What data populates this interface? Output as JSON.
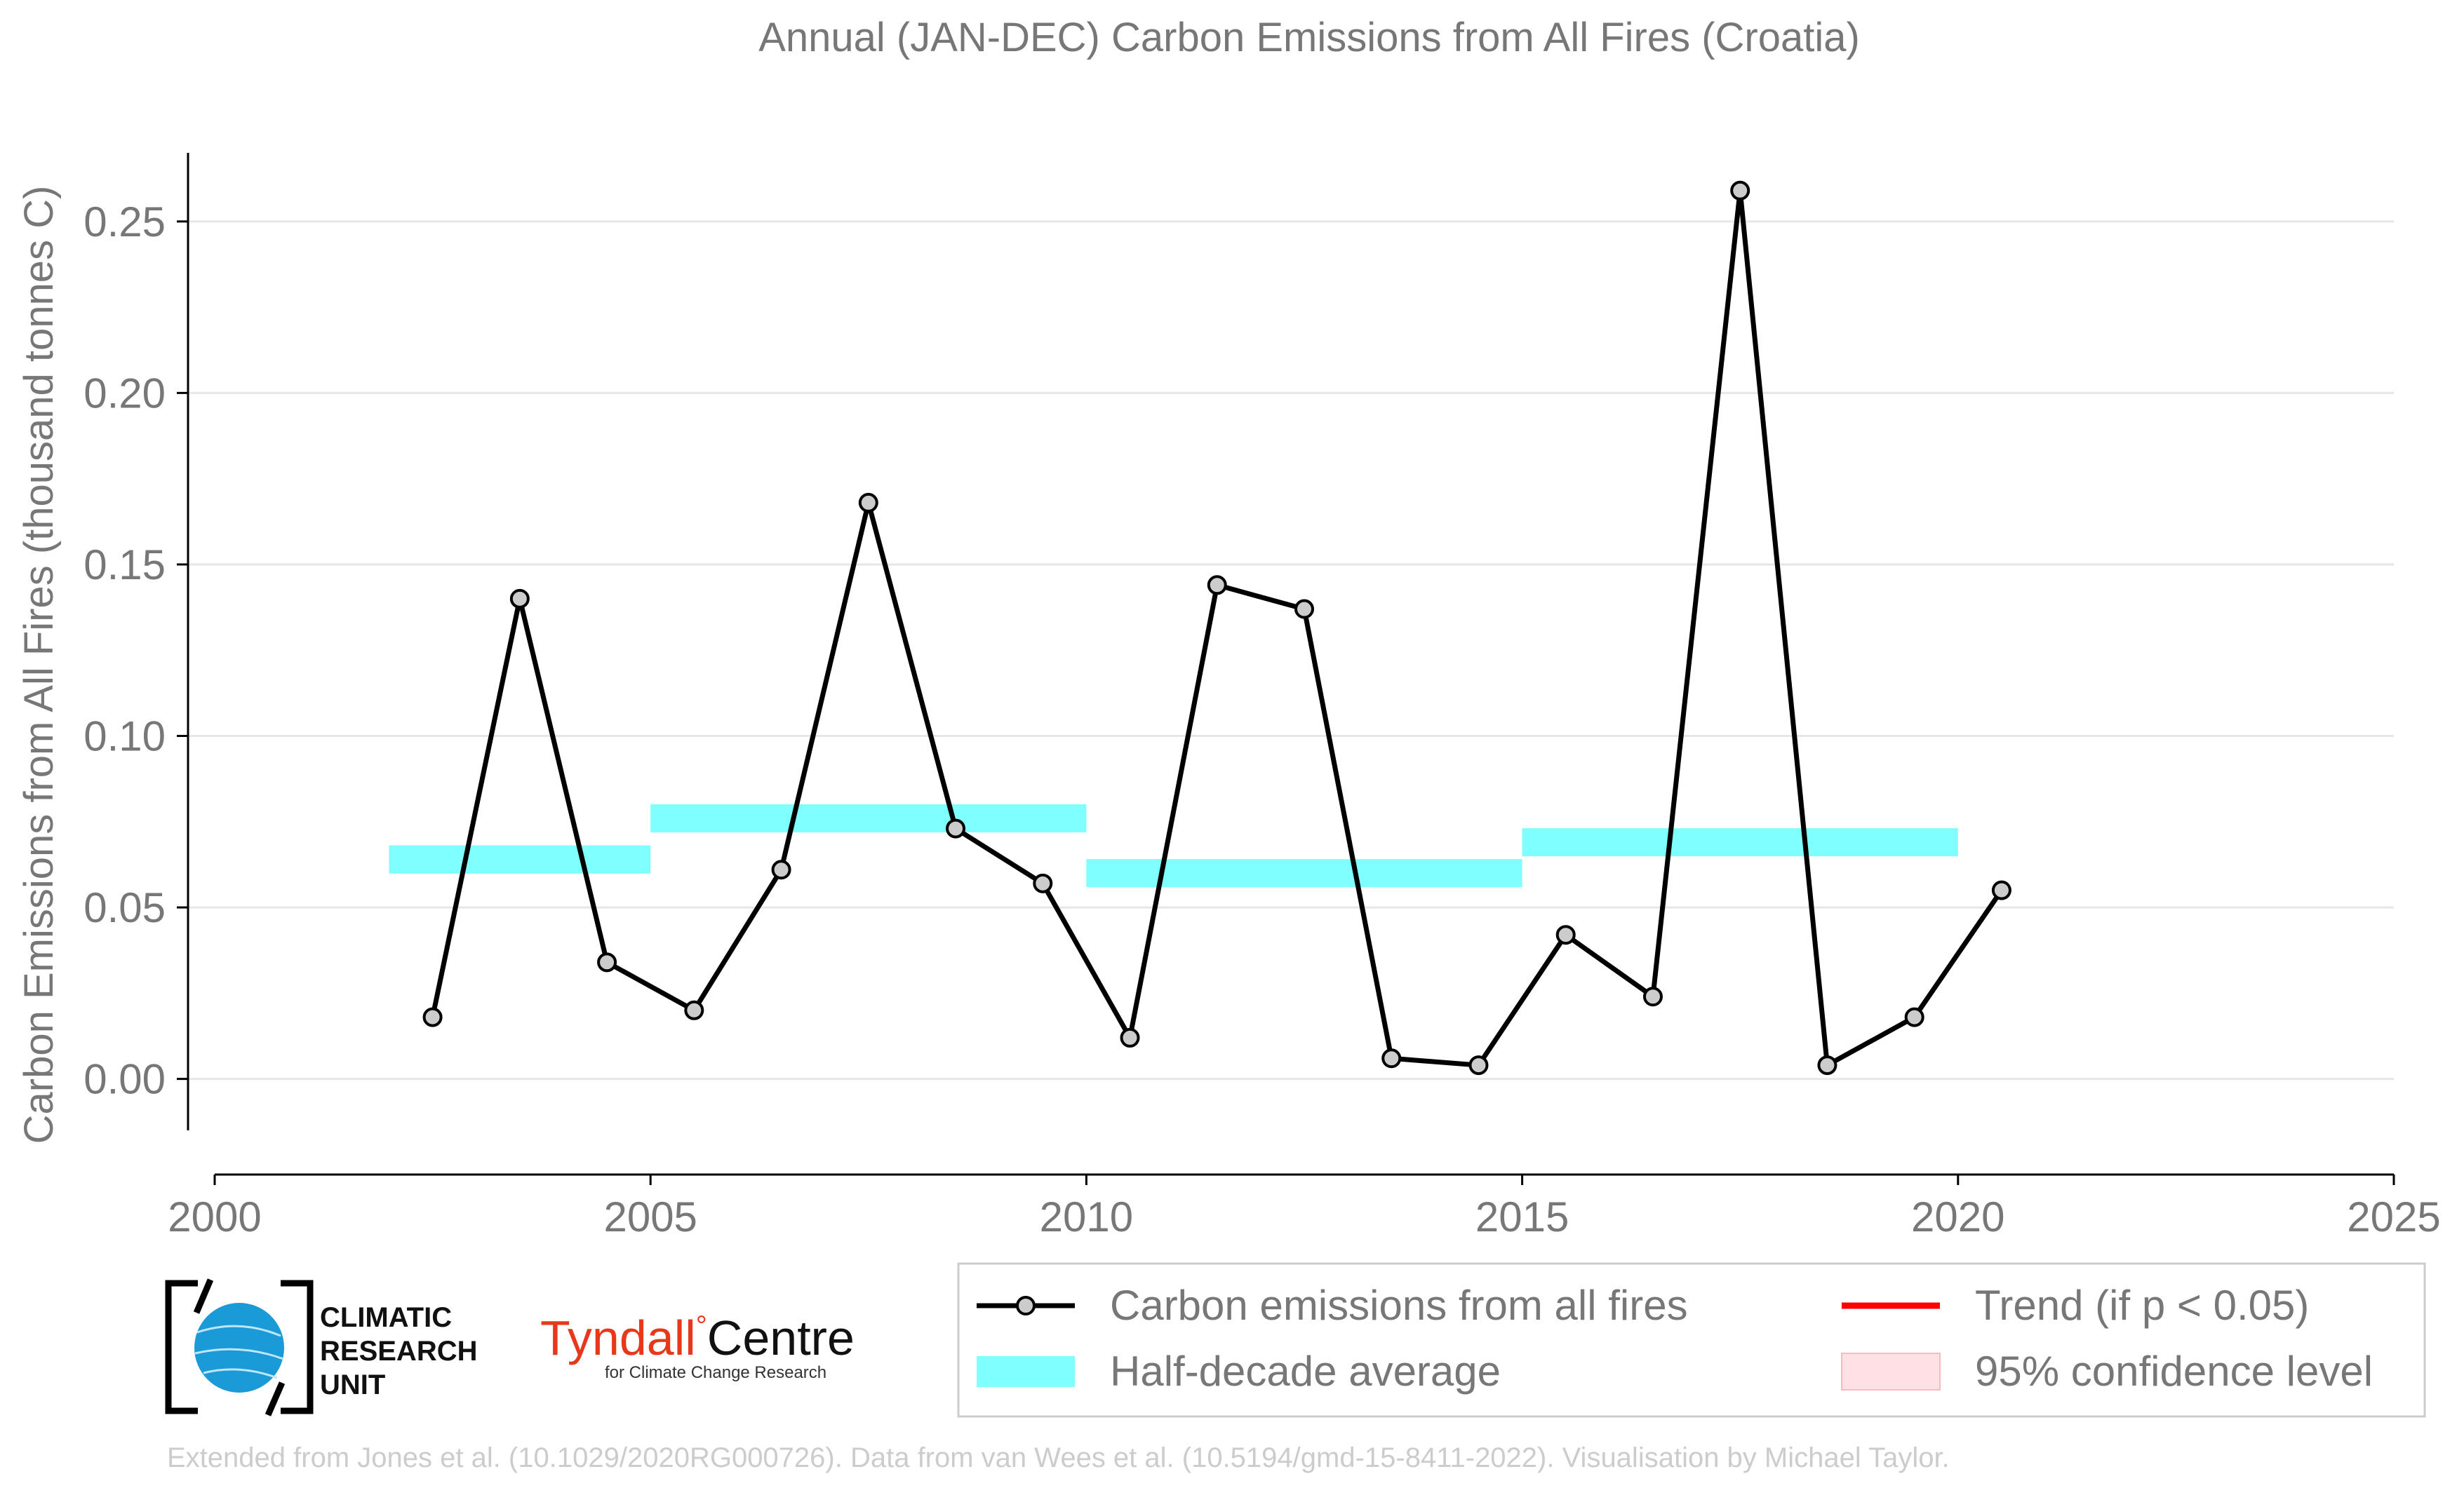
{
  "chart_data": {
    "type": "line",
    "title": "Annual (JAN-DEC) Carbon Emissions from All Fires (Croatia)",
    "ylabel": "Carbon Emissions from All Fires (thousand tonnes C)",
    "xlabel": "",
    "xlim": [
      2000,
      2025
    ],
    "ylim": [
      -0.015,
      0.27
    ],
    "x_ticks": [
      "2000",
      "2005",
      "2010",
      "2015",
      "2020",
      "2025"
    ],
    "x_tick_values": [
      2000,
      2005,
      2010,
      2015,
      2020,
      2025
    ],
    "y_ticks": [
      "0.00",
      "0.05",
      "0.10",
      "0.15",
      "0.20",
      "0.25"
    ],
    "y_tick_values": [
      0,
      0.05,
      0.1,
      0.15,
      0.2,
      0.25
    ],
    "grid": "horizontal",
    "series": [
      {
        "name": "Carbon emissions from all fires",
        "color": "#000000",
        "marker_fill": "#cccccc",
        "x": [
          2002.5,
          2003.5,
          2004.5,
          2005.5,
          2006.5,
          2007.5,
          2008.5,
          2009.5,
          2010.5,
          2011.5,
          2012.5,
          2013.5,
          2014.5,
          2015.5,
          2016.5,
          2017.5,
          2018.5,
          2019.5,
          2020.5
        ],
        "y": [
          0.018,
          0.14,
          0.034,
          0.02,
          0.061,
          0.168,
          0.073,
          0.057,
          0.012,
          0.144,
          0.137,
          0.006,
          0.004,
          0.042,
          0.024,
          0.259,
          0.004,
          0.018,
          0.055
        ]
      }
    ],
    "half_decade_average": {
      "name": "Half-decade average",
      "color": "#7fffff",
      "segments": [
        {
          "x_start": 2002,
          "x_end": 2005,
          "value": 0.064
        },
        {
          "x_start": 2005,
          "x_end": 2010,
          "value": 0.076
        },
        {
          "x_start": 2010,
          "x_end": 2015,
          "value": 0.06
        },
        {
          "x_start": 2015,
          "x_end": 2020,
          "value": 0.069
        }
      ]
    },
    "legend": {
      "placement": "bottom-right",
      "entries": [
        {
          "label": "Carbon emissions from all fires",
          "kind": "line-marker",
          "color": "#000000"
        },
        {
          "label": "Trend (if p < 0.05)",
          "kind": "line",
          "color": "#ff0000"
        },
        {
          "label": "Half-decade average",
          "kind": "band",
          "color": "#7fffff"
        },
        {
          "label": "95% confidence level",
          "kind": "patch",
          "color": "#ffe0e4"
        }
      ]
    }
  },
  "logos": {
    "cru_line1": "CLIMATIC",
    "cru_line2": "RESEARCH",
    "cru_line3": "UNIT",
    "tyndall_name": "Tyndall",
    "tyndall_degree": "°",
    "tyndall_centre": "Centre",
    "tyndall_sub": "for Climate Change Research"
  },
  "footer": "Extended from Jones et al. (10.1029/2020RG000726). Data from van Wees et al. (10.5194/gmd-15-8411-2022). Visualisation by Michael Taylor."
}
